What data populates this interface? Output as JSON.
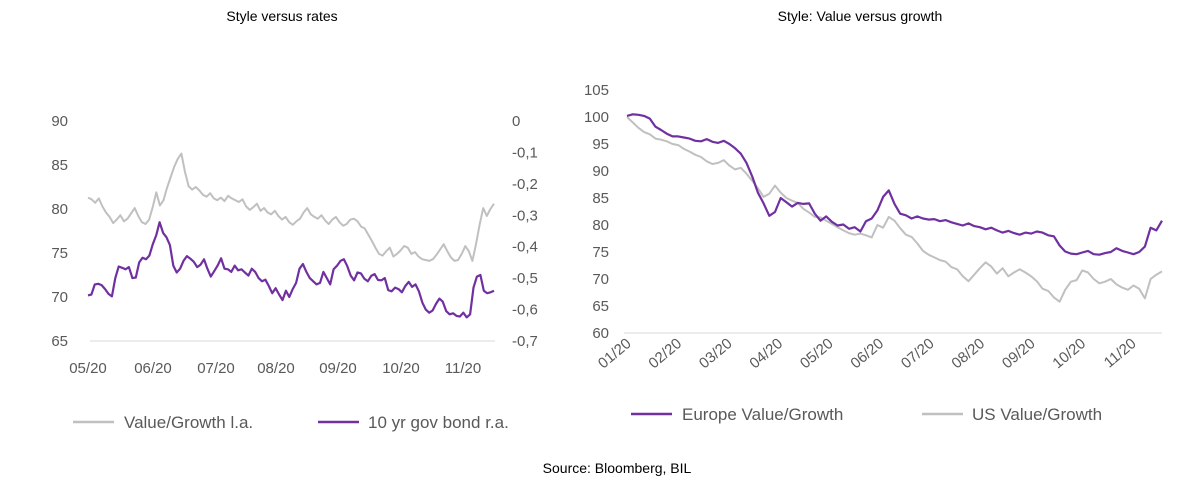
{
  "source": "Source: Bloomberg, BIL",
  "colors": {
    "purple": "#7030a0",
    "grey": "#c0c0c0",
    "text": "#595959"
  },
  "chart_data": [
    {
      "type": "line",
      "title": "Style versus rates",
      "x_ticks": [
        "05/20",
        "06/20",
        "07/20",
        "08/20",
        "09/20",
        "10/20",
        "11/20"
      ],
      "y_left": {
        "ticks": [
          "90",
          "85",
          "80",
          "75",
          "70",
          "65"
        ],
        "min": 65,
        "max": 90
      },
      "y_right": {
        "ticks": [
          "0",
          "-0,1",
          "-0,2",
          "-0,3",
          "-0,4",
          "-0,5",
          "-0,6",
          "-0,7"
        ],
        "min": -0.7,
        "max": 0
      },
      "grid": false,
      "legend_position": "bottom",
      "series": [
        {
          "name": "Value/Growth l.a.",
          "axis": "left",
          "color": "#c0c0c0",
          "values": [
            81.3,
            81.1,
            80.7,
            81.2,
            80.3,
            79.6,
            79.1,
            78.4,
            78.8,
            79.3,
            78.6,
            78.9,
            79.5,
            80.1,
            79.2,
            78.5,
            78.3,
            78.8,
            80.2,
            81.9,
            80.4,
            81.0,
            82.4,
            83.6,
            84.8,
            85.7,
            86.3,
            84.2,
            82.6,
            82.2,
            82.5,
            82.1,
            81.6,
            81.4,
            81.8,
            81.2,
            81.0,
            81.3,
            80.9,
            81.5,
            81.2,
            81.0,
            80.8,
            81.1,
            80.3,
            79.9,
            80.2,
            80.6,
            79.8,
            80.1,
            79.6,
            79.4,
            79.8,
            79.2,
            78.8,
            79.1,
            78.5,
            78.2,
            78.6,
            78.9,
            79.6,
            80.1,
            79.4,
            79.1,
            78.9,
            79.3,
            78.7,
            78.3,
            78.8,
            79.1,
            78.5,
            78.1,
            78.3,
            78.8,
            78.9,
            78.6,
            78.0,
            77.8,
            77.1,
            76.4,
            75.6,
            74.9,
            74.7,
            75.2,
            75.6,
            74.6,
            74.9,
            75.3,
            75.8,
            75.6,
            74.9,
            75.1,
            74.6,
            74.3,
            74.2,
            74.1,
            74.3,
            74.8,
            75.4,
            76.0,
            75.2,
            74.5,
            74.1,
            74.2,
            74.9,
            75.8,
            75.2,
            74.1,
            76.0,
            78.2,
            80.1,
            79.2,
            80.0,
            80.6
          ]
        },
        {
          "name": "10 yr gov bond r.a.",
          "axis": "right",
          "color": "#7030a0",
          "values": [
            -0.555,
            -0.552,
            -0.52,
            -0.518,
            -0.522,
            -0.535,
            -0.55,
            -0.558,
            -0.5,
            -0.463,
            -0.467,
            -0.472,
            -0.465,
            -0.5,
            -0.498,
            -0.45,
            -0.435,
            -0.44,
            -0.428,
            -0.392,
            -0.364,
            -0.322,
            -0.356,
            -0.37,
            -0.395,
            -0.46,
            -0.482,
            -0.47,
            -0.445,
            -0.43,
            -0.438,
            -0.448,
            -0.465,
            -0.457,
            -0.44,
            -0.47,
            -0.495,
            -0.478,
            -0.46,
            -0.437,
            -0.47,
            -0.472,
            -0.48,
            -0.46,
            -0.475,
            -0.472,
            -0.482,
            -0.492,
            -0.47,
            -0.48,
            -0.5,
            -0.51,
            -0.505,
            -0.525,
            -0.548,
            -0.532,
            -0.552,
            -0.57,
            -0.54,
            -0.56,
            -0.535,
            -0.515,
            -0.47,
            -0.455,
            -0.48,
            -0.5,
            -0.51,
            -0.52,
            -0.515,
            -0.48,
            -0.5,
            -0.52,
            -0.472,
            -0.46,
            -0.445,
            -0.44,
            -0.462,
            -0.492,
            -0.507,
            -0.482,
            -0.485,
            -0.502,
            -0.51,
            -0.493,
            -0.487,
            -0.506,
            -0.507,
            -0.5,
            -0.538,
            -0.542,
            -0.53,
            -0.535,
            -0.545,
            -0.525,
            -0.512,
            -0.528,
            -0.52,
            -0.542,
            -0.578,
            -0.6,
            -0.61,
            -0.603,
            -0.582,
            -0.565,
            -0.575,
            -0.605,
            -0.615,
            -0.612,
            -0.62,
            -0.622,
            -0.61,
            -0.625,
            -0.615,
            -0.53,
            -0.495,
            -0.49,
            -0.54,
            -0.548,
            -0.545,
            -0.54
          ]
        }
      ]
    },
    {
      "type": "line",
      "title": "Style: Value versus growth",
      "x_ticks": [
        "01/20",
        "02/20",
        "03/20",
        "04/20",
        "05/20",
        "06/20",
        "07/20",
        "08/20",
        "09/20",
        "10/20",
        "11/20"
      ],
      "y": {
        "ticks": [
          "105",
          "100",
          "95",
          "90",
          "85",
          "80",
          "75",
          "70",
          "65",
          "60"
        ],
        "min": 60,
        "max": 105
      },
      "grid": false,
      "legend_position": "bottom",
      "series": [
        {
          "name": "Europe Value/Growth",
          "color": "#7030a0",
          "values": [
            100.2,
            100.5,
            100.4,
            100.2,
            99.7,
            98.2,
            97.6,
            96.9,
            96.4,
            96.4,
            96.2,
            96.0,
            95.6,
            95.5,
            95.9,
            95.4,
            95.2,
            95.6,
            95.0,
            94.2,
            93.2,
            91.5,
            89.0,
            86.0,
            84.0,
            81.7,
            82.4,
            85.0,
            84.2,
            83.4,
            84.1,
            83.9,
            84.0,
            82.1,
            80.8,
            81.6,
            80.6,
            79.9,
            80.1,
            79.3,
            79.6,
            78.8,
            80.7,
            81.2,
            82.7,
            85.2,
            86.4,
            83.9,
            82.1,
            81.8,
            81.2,
            81.6,
            81.2,
            81.0,
            81.1,
            80.7,
            80.9,
            80.5,
            80.2,
            79.9,
            80.3,
            79.8,
            79.6,
            79.2,
            79.5,
            79.0,
            78.6,
            78.9,
            78.5,
            78.2,
            78.6,
            78.4,
            78.8,
            78.6,
            78.1,
            77.9,
            76.2,
            75.1,
            74.7,
            74.6,
            74.9,
            75.2,
            74.6,
            74.5,
            74.8,
            75.0,
            75.7,
            75.2,
            74.9,
            74.6,
            75.0,
            76.0,
            79.5,
            79.0,
            80.8
          ]
        },
        {
          "name": "US Value/Growth",
          "color": "#c0c0c0",
          "values": [
            100.0,
            99.0,
            98.0,
            97.2,
            96.8,
            96.0,
            95.8,
            95.5,
            95.0,
            94.8,
            94.1,
            93.6,
            93.0,
            92.6,
            91.8,
            91.3,
            91.5,
            92.0,
            91.0,
            90.3,
            90.6,
            89.5,
            88.2,
            86.8,
            85.2,
            85.8,
            87.3,
            86.0,
            85.0,
            84.5,
            84.1,
            83.0,
            82.3,
            81.5,
            81.4,
            80.8,
            80.2,
            79.6,
            79.0,
            78.5,
            78.2,
            78.4,
            78.1,
            77.7,
            80.0,
            79.5,
            81.5,
            80.8,
            79.4,
            78.2,
            77.8,
            76.6,
            75.2,
            74.5,
            74.0,
            73.5,
            73.2,
            72.2,
            71.8,
            70.5,
            69.6,
            70.8,
            72.0,
            73.1,
            72.3,
            71.0,
            72.0,
            70.5,
            71.2,
            71.8,
            71.2,
            70.5,
            69.6,
            68.2,
            67.8,
            66.6,
            65.8,
            68.0,
            69.5,
            69.8,
            71.6,
            71.2,
            70.0,
            69.2,
            69.5,
            70.0,
            69.0,
            68.4,
            68.0,
            68.8,
            68.2,
            66.4,
            70.0,
            70.8,
            71.4
          ]
        }
      ]
    }
  ]
}
